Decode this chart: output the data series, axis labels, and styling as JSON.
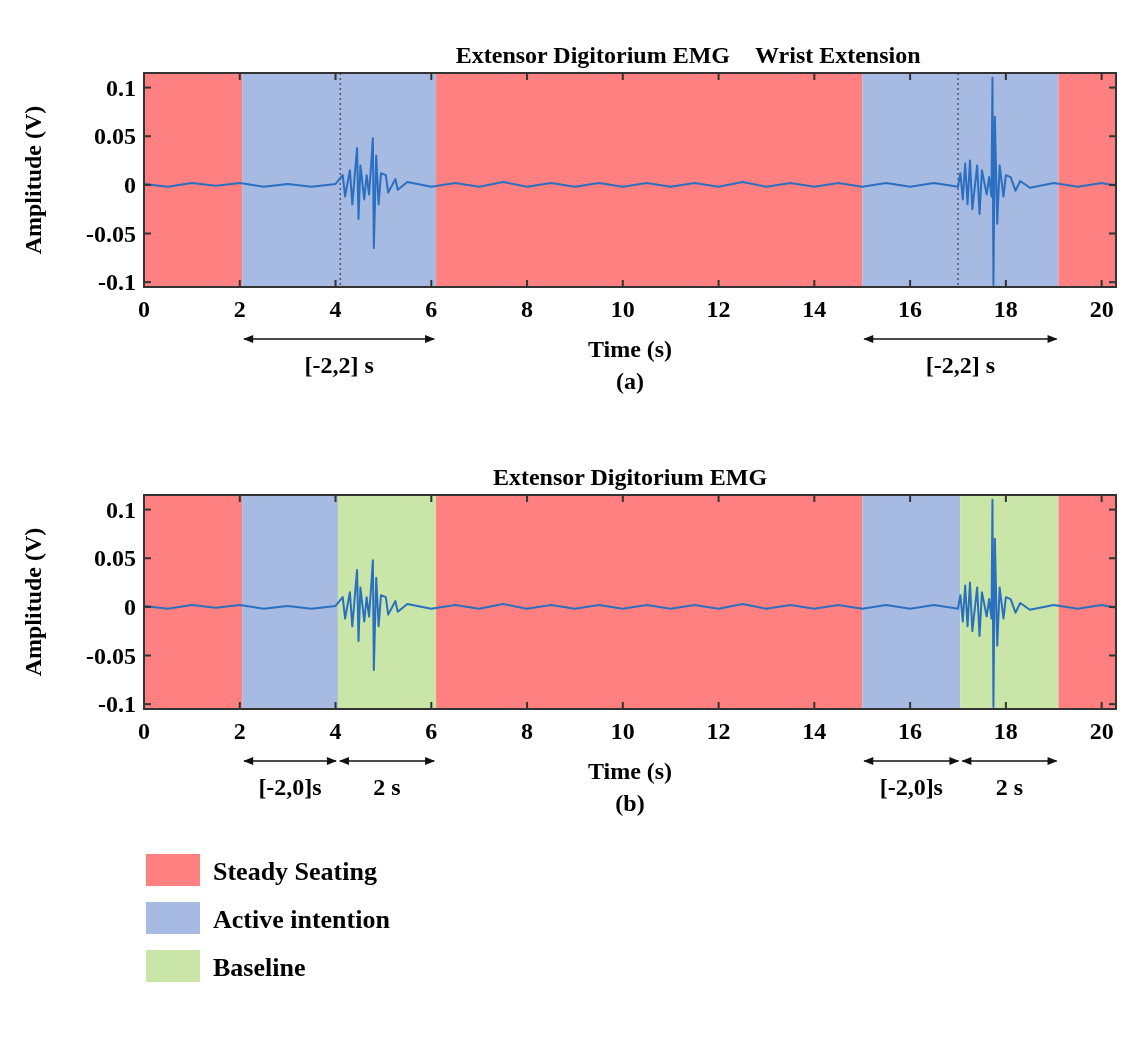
{
  "chart_data": [
    {
      "type": "line",
      "title": "Extensor Digitorium EMG",
      "subtitle": "Wrist Extension",
      "xlabel": "Time (s)",
      "ylabel": "Amplitude (V)",
      "xlim": [
        0,
        20.3
      ],
      "ylim": [
        -0.105,
        0.115
      ],
      "xticks": [
        0,
        2,
        4,
        6,
        8,
        10,
        12,
        14,
        16,
        18,
        20
      ],
      "yticks": [
        -0.1,
        -0.05,
        0,
        0.05,
        0.1
      ],
      "grid": false,
      "bands": [
        {
          "axis": "x",
          "from": 0,
          "to": 2.05,
          "color": "#ff8080"
        },
        {
          "axis": "x",
          "from": 2.05,
          "to": 6.1,
          "color": "#a7bae2"
        },
        {
          "axis": "x",
          "from": 6.1,
          "to": 15,
          "color": "#ff8080"
        },
        {
          "axis": "x",
          "from": 15,
          "to": 19.1,
          "color": "#a7bae2"
        },
        {
          "axis": "x",
          "from": 19.1,
          "to": 20.3,
          "color": "#ff8080"
        }
      ],
      "ref_lines": [
        {
          "axis": "x",
          "value": 4.1,
          "color": "#555566",
          "line_style": "dotted"
        },
        {
          "axis": "x",
          "value": 17,
          "color": "#555566",
          "line_style": "dotted"
        }
      ],
      "annotations": [
        "[-2,2] s",
        "[-2,2] s",
        "(a)"
      ],
      "series": [
        {
          "color": "#2a6fc0",
          "x": [
            0,
            0.5,
            1,
            1.5,
            2,
            2.5,
            3,
            3.5,
            4,
            4.15,
            4.2,
            4.3,
            4.35,
            4.45,
            4.48,
            4.52,
            4.6,
            4.65,
            4.7,
            4.75,
            4.78,
            4.8,
            4.85,
            4.9,
            4.95,
            5.05,
            5.1,
            5.25,
            5.3,
            5.5,
            6,
            6.5,
            7,
            7.5,
            8,
            8.5,
            9,
            9.5,
            10,
            10.5,
            11,
            11.5,
            12,
            12.5,
            13,
            13.5,
            14,
            14.5,
            15,
            15.5,
            16,
            16.5,
            17,
            17.05,
            17.1,
            17.15,
            17.2,
            17.25,
            17.3,
            17.4,
            17.45,
            17.5,
            17.6,
            17.65,
            17.7,
            17.72,
            17.74,
            17.77,
            17.82,
            17.87,
            17.95,
            18,
            18.1,
            18.2,
            18.3,
            18.5,
            19,
            19.5,
            20,
            20.3
          ],
          "values": [
            0.001,
            -0.002,
            0.002,
            -0.001,
            0.002,
            -0.002,
            0.001,
            -0.002,
            0.001,
            0.01,
            -0.012,
            0.015,
            -0.02,
            0.038,
            -0.035,
            0.02,
            -0.015,
            0.01,
            -0.01,
            0.025,
            0.048,
            -0.065,
            0.03,
            -0.02,
            0.012,
            0.01,
            -0.008,
            0.006,
            -0.005,
            0.003,
            -0.002,
            0.002,
            -0.002,
            0.003,
            -0.002,
            0.002,
            -0.002,
            0.002,
            -0.002,
            0.002,
            -0.002,
            0.002,
            -0.002,
            0.003,
            -0.002,
            0.002,
            -0.002,
            0.002,
            -0.002,
            0.002,
            -0.002,
            0.002,
            -0.002,
            0.012,
            -0.015,
            0.022,
            -0.02,
            0.025,
            -0.025,
            0.02,
            -0.03,
            0.015,
            -0.01,
            0.008,
            -0.012,
            0.11,
            -0.103,
            0.07,
            -0.04,
            0.02,
            -0.012,
            0.01,
            0.008,
            -0.006,
            0.004,
            -0.003,
            0.002,
            -0.002,
            0.002,
            -0.001
          ]
        }
      ]
    },
    {
      "type": "line",
      "title": "Extensor Digitorium EMG",
      "xlabel": "Time (s)",
      "ylabel": "Amplitude (V)",
      "xlim": [
        0,
        20.3
      ],
      "ylim": [
        -0.105,
        0.115
      ],
      "xticks": [
        0,
        2,
        4,
        6,
        8,
        10,
        12,
        14,
        16,
        18,
        20
      ],
      "yticks": [
        -0.1,
        -0.05,
        0,
        0.05,
        0.1
      ],
      "grid": false,
      "legend": "bottom",
      "bands": [
        {
          "axis": "x",
          "from": 0,
          "to": 2.05,
          "color": "#ff8080"
        },
        {
          "axis": "x",
          "from": 2.05,
          "to": 4.05,
          "color": "#a7bae2"
        },
        {
          "axis": "x",
          "from": 4.05,
          "to": 6.1,
          "color": "#c9e6a8"
        },
        {
          "axis": "x",
          "from": 6.1,
          "to": 15,
          "label": "Steady Seating",
          "color": "#ff8080"
        },
        {
          "axis": "x",
          "from": 15,
          "to": 17.05,
          "label": "Active intention",
          "color": "#a7bae2"
        },
        {
          "axis": "x",
          "from": 17.05,
          "to": 19.1,
          "label": "Baseline",
          "color": "#c9e6a8"
        },
        {
          "axis": "x",
          "from": 19.1,
          "to": 20.3,
          "color": "#ff8080"
        }
      ],
      "annotations": [
        "[-2,0]s",
        "2 s",
        "[-2,0]s",
        "2 s",
        "(b)"
      ],
      "series": [
        {
          "color": "#2a6fc0",
          "x": [
            0,
            0.5,
            1,
            1.5,
            2,
            2.5,
            3,
            3.5,
            4,
            4.15,
            4.2,
            4.3,
            4.35,
            4.45,
            4.48,
            4.52,
            4.6,
            4.65,
            4.7,
            4.75,
            4.78,
            4.8,
            4.85,
            4.9,
            4.95,
            5.05,
            5.1,
            5.25,
            5.3,
            5.5,
            6,
            6.5,
            7,
            7.5,
            8,
            8.5,
            9,
            9.5,
            10,
            10.5,
            11,
            11.5,
            12,
            12.5,
            13,
            13.5,
            14,
            14.5,
            15,
            15.5,
            16,
            16.5,
            17,
            17.05,
            17.1,
            17.15,
            17.2,
            17.25,
            17.3,
            17.4,
            17.45,
            17.5,
            17.6,
            17.65,
            17.7,
            17.72,
            17.74,
            17.77,
            17.82,
            17.87,
            17.95,
            18,
            18.1,
            18.2,
            18.3,
            18.5,
            19,
            19.5,
            20,
            20.3
          ],
          "values": [
            0.001,
            -0.002,
            0.002,
            -0.001,
            0.002,
            -0.002,
            0.001,
            -0.002,
            0.001,
            0.01,
            -0.012,
            0.015,
            -0.02,
            0.038,
            -0.035,
            0.02,
            -0.015,
            0.01,
            -0.01,
            0.025,
            0.048,
            -0.065,
            0.03,
            -0.02,
            0.012,
            0.01,
            -0.008,
            0.006,
            -0.005,
            0.003,
            -0.002,
            0.002,
            -0.002,
            0.003,
            -0.002,
            0.002,
            -0.002,
            0.002,
            -0.002,
            0.002,
            -0.002,
            0.002,
            -0.002,
            0.003,
            -0.002,
            0.002,
            -0.002,
            0.002,
            -0.002,
            0.002,
            -0.002,
            0.002,
            -0.002,
            0.012,
            -0.015,
            0.022,
            -0.02,
            0.025,
            -0.025,
            0.02,
            -0.03,
            0.015,
            -0.01,
            0.008,
            -0.012,
            0.11,
            -0.103,
            0.07,
            -0.04,
            0.02,
            -0.012,
            0.01,
            0.008,
            -0.006,
            0.004,
            -0.003,
            0.002,
            -0.002,
            0.002,
            -0.001
          ]
        }
      ]
    }
  ]
}
